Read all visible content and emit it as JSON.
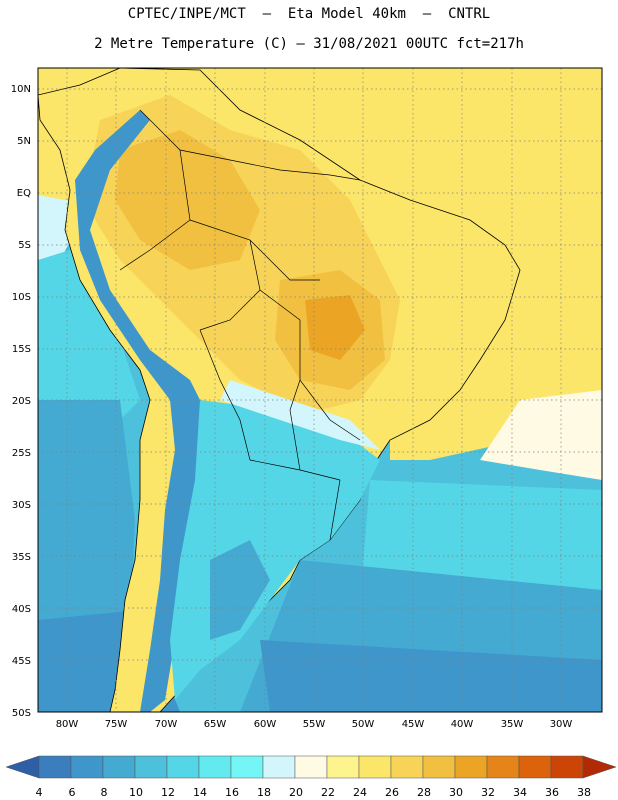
{
  "title": {
    "line1": "CPTEC/INPE/MCT  –  Eta Model 40km  –  CNTRL",
    "line2": "2 Metre Temperature (C) – 31/08/2021 00UTC fct=217h"
  },
  "map": {
    "region": "South America",
    "lat_labels": [
      "10N",
      "5N",
      "EQ",
      "5S",
      "10S",
      "15S",
      "20S",
      "25S",
      "30S",
      "35S",
      "40S",
      "45S",
      "50S"
    ],
    "lon_labels": [
      "80W",
      "75W",
      "70W",
      "65W",
      "60W",
      "55W",
      "50W",
      "45W",
      "40W",
      "35W",
      "30W"
    ],
    "lat_range": [
      -50,
      12
    ],
    "lon_range": [
      -83,
      -26
    ]
  },
  "colorbar": {
    "levels": [
      "4",
      "6",
      "8",
      "10",
      "12",
      "14",
      "16",
      "18",
      "20",
      "22",
      "24",
      "26",
      "28",
      "30",
      "32",
      "34",
      "36",
      "38"
    ],
    "colors": [
      "#2e5fa6",
      "#3a7ebe",
      "#3f96ca",
      "#45aad2",
      "#4dc0dc",
      "#55d6e6",
      "#62eaee",
      "#74f6f6",
      "#d2f6fc",
      "#fefae4",
      "#fdf48e",
      "#fbe66a",
      "#f7d458",
      "#f1c040",
      "#eca424",
      "#e58418",
      "#dc620c",
      "#cc4406",
      "#b22a04"
    ]
  }
}
